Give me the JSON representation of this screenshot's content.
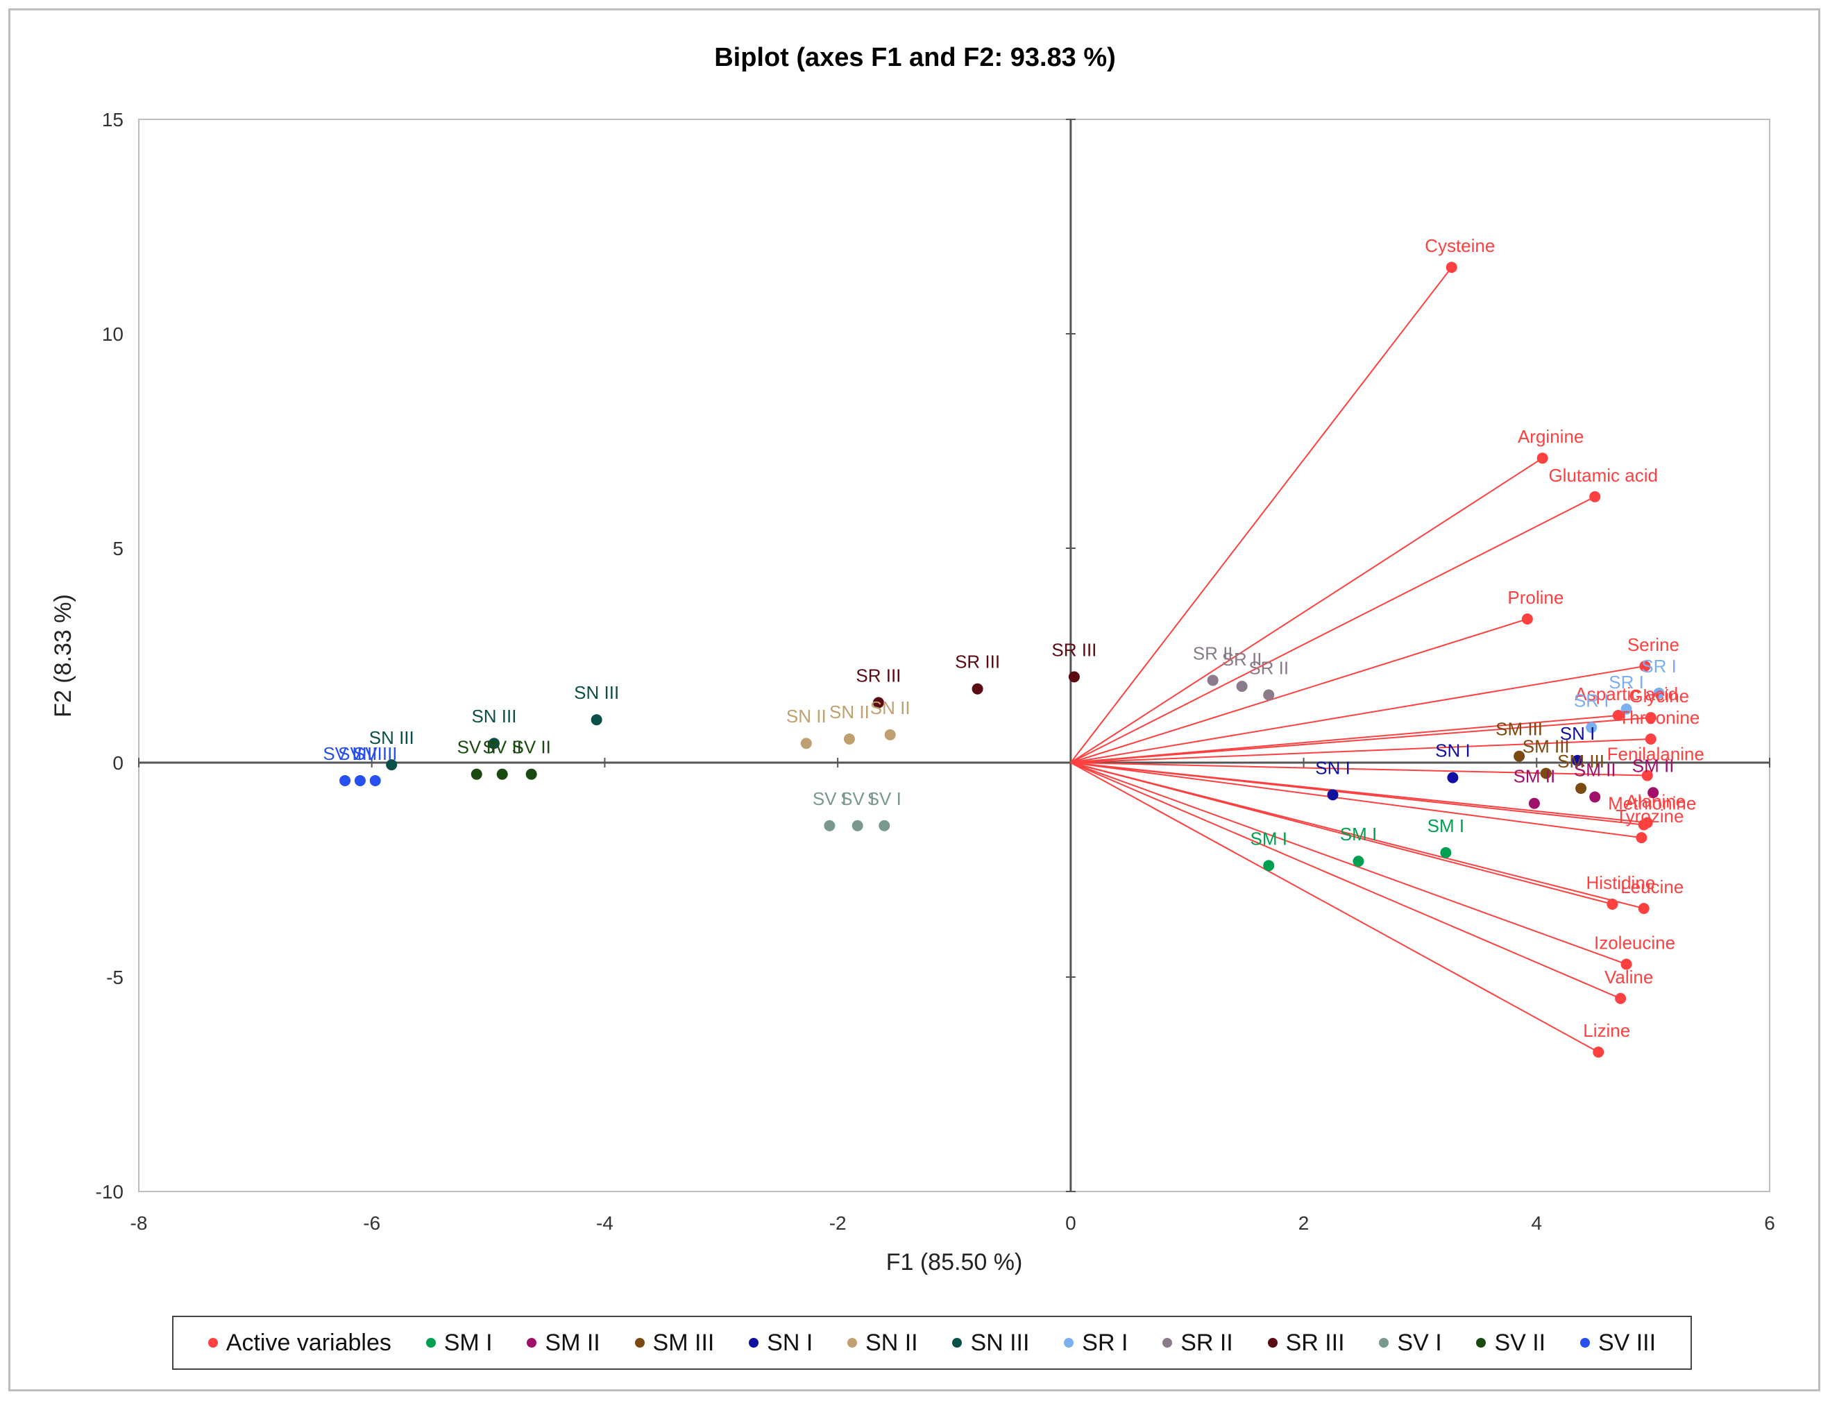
{
  "chart_data": {
    "type": "scatter",
    "title": "Biplot (axes F1 and F2: 93.83 %)",
    "xlabel": "F1 (85.50 %)",
    "ylabel": "F2 (8.33 %)",
    "xlim": [
      -8,
      6
    ],
    "ylim": [
      -10,
      15
    ],
    "xticks": [
      "-8",
      "-6",
      "-4",
      "-2",
      "0",
      "2",
      "4",
      "6"
    ],
    "yticks": [
      "15",
      "10",
      "5",
      "0",
      "-5",
      "-10"
    ],
    "grid": false,
    "legend_position": "bottom",
    "active_variables": {
      "name": "Active variables",
      "color": "#ff4040",
      "points": [
        {
          "label": "Cysteine",
          "x": 3.27,
          "y": 11.55
        },
        {
          "label": "Arginine",
          "x": 4.05,
          "y": 7.1
        },
        {
          "label": "Glutamic acid",
          "x": 4.5,
          "y": 6.2
        },
        {
          "label": "Proline",
          "x": 3.92,
          "y": 3.35
        },
        {
          "label": "Serine",
          "x": 4.93,
          "y": 2.25
        },
        {
          "label": "Aspartic acid",
          "x": 4.7,
          "y": 1.1
        },
        {
          "label": "Glycine",
          "x": 4.98,
          "y": 1.05
        },
        {
          "label": "Threonine",
          "x": 4.98,
          "y": 0.55
        },
        {
          "label": "Fenilalanine",
          "x": 4.95,
          "y": -0.3
        },
        {
          "label": "Alanine",
          "x": 4.95,
          "y": -1.4
        },
        {
          "label": "Tyrozine",
          "x": 4.9,
          "y": -1.75
        },
        {
          "label": "Methionine",
          "x": 4.92,
          "y": -1.45
        },
        {
          "label": "Histidine",
          "x": 4.65,
          "y": -3.3
        },
        {
          "label": "Leucine",
          "x": 4.92,
          "y": -3.4
        },
        {
          "label": "Izoleucine",
          "x": 4.77,
          "y": -4.7
        },
        {
          "label": "Valine",
          "x": 4.72,
          "y": -5.5
        },
        {
          "label": "Lizine",
          "x": 4.53,
          "y": -6.75
        }
      ]
    },
    "series": [
      {
        "name": "SM I",
        "color": "#00a050",
        "points": [
          {
            "label": "SM I",
            "x": 1.7,
            "y": -2.4
          },
          {
            "label": "SM I",
            "x": 2.47,
            "y": -2.3
          },
          {
            "label": "SM I",
            "x": 3.22,
            "y": -2.1
          }
        ]
      },
      {
        "name": "SM II",
        "color": "#a0106a",
        "points": [
          {
            "label": "SM II",
            "x": 3.98,
            "y": -0.95
          },
          {
            "label": "SM II",
            "x": 4.5,
            "y": -0.8
          },
          {
            "label": "SM II",
            "x": 5.0,
            "y": -0.7
          }
        ]
      },
      {
        "name": "SM III",
        "color": "#7a4a10",
        "points": [
          {
            "label": "SM III",
            "x": 3.85,
            "y": 0.15
          },
          {
            "label": "SM III",
            "x": 4.08,
            "y": -0.25
          },
          {
            "label": "SM III",
            "x": 4.38,
            "y": -0.6
          }
        ]
      },
      {
        "name": "SN I",
        "color": "#1010a0",
        "points": [
          {
            "label": "SN I",
            "x": 2.25,
            "y": -0.75
          },
          {
            "label": "SN I",
            "x": 3.28,
            "y": -0.35
          },
          {
            "label": "SN I",
            "x": 4.35,
            "y": 0.05
          }
        ]
      },
      {
        "name": "SN II",
        "color": "#c0a070",
        "points": [
          {
            "label": "SN II",
            "x": -2.27,
            "y": 0.45
          },
          {
            "label": "SN II",
            "x": -1.9,
            "y": 0.55
          },
          {
            "label": "SN II",
            "x": -1.55,
            "y": 0.65
          }
        ]
      },
      {
        "name": "SN III",
        "color": "#0a5048",
        "points": [
          {
            "label": "SN III",
            "x": -5.83,
            "y": -0.05
          },
          {
            "label": "SN III",
            "x": -4.95,
            "y": 0.45
          },
          {
            "label": "SN III",
            "x": -4.07,
            "y": 1.0
          }
        ]
      },
      {
        "name": "SR I",
        "color": "#7ab0f0",
        "points": [
          {
            "label": "SR I",
            "x": 4.47,
            "y": 0.82
          },
          {
            "label": "SR I",
            "x": 4.77,
            "y": 1.25
          },
          {
            "label": "SR I",
            "x": 5.05,
            "y": 1.62
          }
        ]
      },
      {
        "name": "SR II",
        "color": "#8a7a8a",
        "points": [
          {
            "label": "SR II",
            "x": 1.22,
            "y": 1.92
          },
          {
            "label": "SR II",
            "x": 1.47,
            "y": 1.78
          },
          {
            "label": "SR II",
            "x": 1.7,
            "y": 1.58
          }
        ]
      },
      {
        "name": "SR III",
        "color": "#5a0a10",
        "points": [
          {
            "label": "SR III",
            "x": -1.65,
            "y": 1.4
          },
          {
            "label": "SR III",
            "x": -0.8,
            "y": 1.72
          },
          {
            "label": "SR III",
            "x": 0.03,
            "y": 2.0
          }
        ]
      },
      {
        "name": "SV I",
        "color": "#789890",
        "points": [
          {
            "label": "SV I",
            "x": -2.07,
            "y": -1.47
          },
          {
            "label": "SV I",
            "x": -1.83,
            "y": -1.47
          },
          {
            "label": "SV I",
            "x": -1.6,
            "y": -1.47
          }
        ]
      },
      {
        "name": "SV II",
        "color": "#1a4a10",
        "points": [
          {
            "label": "SV II",
            "x": -5.1,
            "y": -0.27
          },
          {
            "label": "SV II",
            "x": -4.88,
            "y": -0.27
          },
          {
            "label": "SV II",
            "x": -4.63,
            "y": -0.27
          }
        ]
      },
      {
        "name": "SV III",
        "color": "#2850f0",
        "points": [
          {
            "label": "SV III",
            "x": -6.23,
            "y": -0.42
          },
          {
            "label": "SV III",
            "x": -6.1,
            "y": -0.42
          },
          {
            "label": "SV III",
            "x": -5.97,
            "y": -0.42
          }
        ]
      }
    ]
  },
  "legend": [
    {
      "label": "Active variables",
      "color": "#ff4040"
    },
    {
      "label": "SM I",
      "color": "#00a050"
    },
    {
      "label": "SM II",
      "color": "#a0106a"
    },
    {
      "label": "SM III",
      "color": "#7a4a10"
    },
    {
      "label": "SN I",
      "color": "#1010a0"
    },
    {
      "label": "SN II",
      "color": "#c0a070"
    },
    {
      "label": "SN III",
      "color": "#0a5048"
    },
    {
      "label": "SR I",
      "color": "#7ab0f0"
    },
    {
      "label": "SR II",
      "color": "#8a7a8a"
    },
    {
      "label": "SR III",
      "color": "#5a0a10"
    },
    {
      "label": "SV I",
      "color": "#789890"
    },
    {
      "label": "SV II",
      "color": "#1a4a10"
    },
    {
      "label": "SV III",
      "color": "#2850f0"
    }
  ]
}
